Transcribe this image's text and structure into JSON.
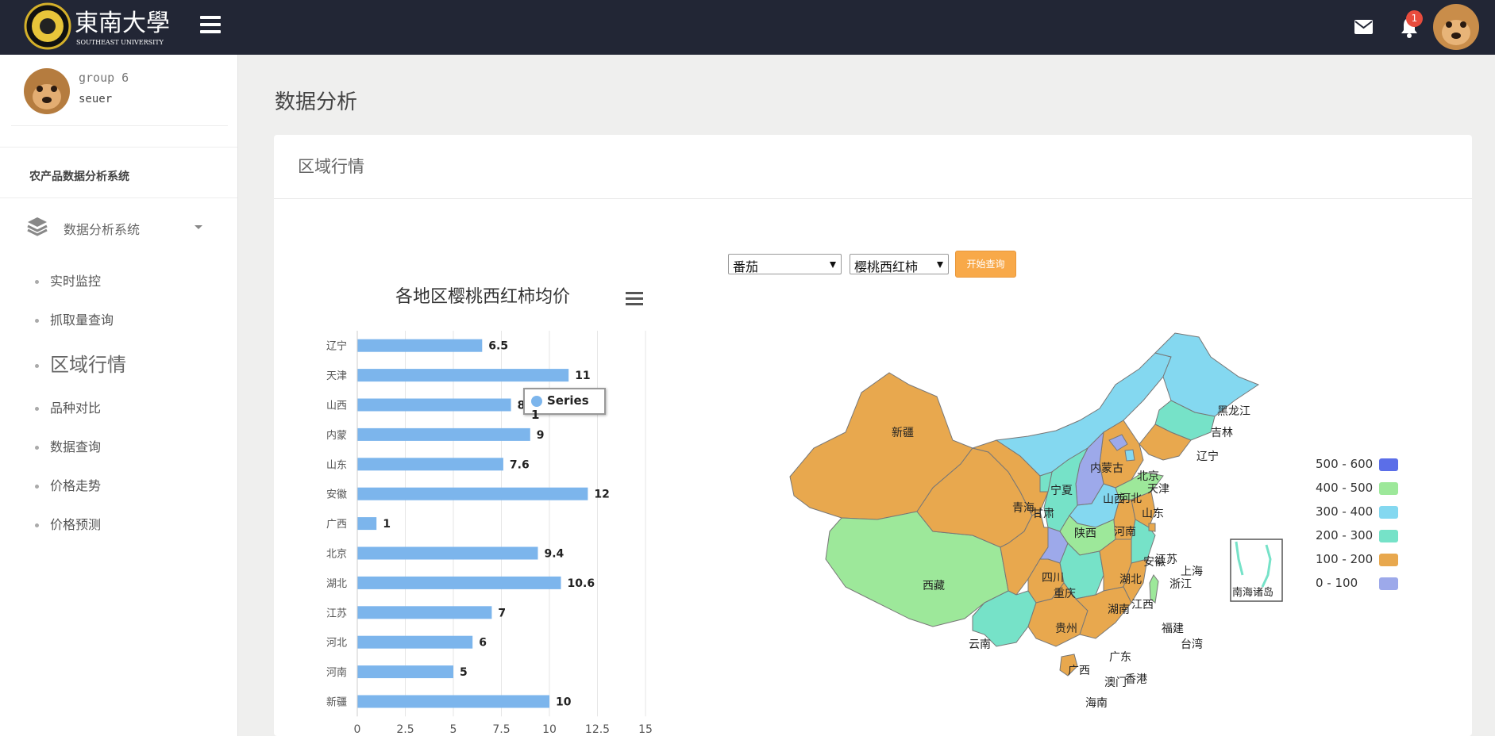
{
  "header": {
    "logo_text": "東南大學",
    "logo_subtext": "SOUTHEAST UNIVERSITY",
    "notification_count": "1"
  },
  "sidebar": {
    "user_group": "group 6",
    "user_name": "seuer",
    "system_title": "农产品数据分析系统",
    "section_label": "数据分析系统",
    "items": [
      {
        "label": "实时监控"
      },
      {
        "label": "抓取量查询"
      },
      {
        "label": "区域行情"
      },
      {
        "label": "品种对比"
      },
      {
        "label": "数据查询"
      },
      {
        "label": "价格走势"
      },
      {
        "label": "价格预测"
      }
    ]
  },
  "main": {
    "page_title": "数据分析",
    "panel_title": "区域行情",
    "filters": {
      "category": "番茄",
      "variety": "樱桃西红柿",
      "query_button": "开始查询"
    },
    "tooltip": {
      "series_name": "Series 1"
    }
  },
  "chart_data": {
    "type": "bar",
    "orientation": "horizontal",
    "title": "各地区樱桃西红柿均价",
    "categories": [
      "辽宁",
      "天津",
      "山西",
      "内蒙",
      "山东",
      "安徽",
      "广西",
      "北京",
      "湖北",
      "江苏",
      "河北",
      "河南",
      "新疆"
    ],
    "series": [
      {
        "name": "Series 1",
        "values": [
          6.5,
          11,
          8,
          9,
          7.6,
          12,
          1,
          9.4,
          10.6,
          7,
          6,
          5,
          10
        ]
      }
    ],
    "data_labels": [
      "6.5",
      "11",
      "8",
      "9",
      "7.6",
      "12",
      "1",
      "9.4",
      "10.6",
      "7",
      "6",
      "5",
      "10"
    ],
    "x_ticks": [
      "0",
      "2.5",
      "5",
      "7.5",
      "10",
      "12.5",
      "15"
    ],
    "xlim": [
      0,
      15
    ],
    "grid": true,
    "bar_color": "#7cb5ec"
  },
  "map": {
    "provinces": [
      "新疆",
      "西藏",
      "青海",
      "甘肃",
      "宁夏",
      "内蒙古",
      "黑龙江",
      "吉林",
      "辽宁",
      "北京",
      "天津",
      "河北",
      "山西",
      "山东",
      "河南",
      "陕西",
      "四川",
      "重庆",
      "湖北",
      "湖南",
      "江西",
      "安徽",
      "江苏",
      "上海",
      "浙江",
      "福建",
      "台湾",
      "广东",
      "广西",
      "贵州",
      "云南",
      "海南",
      "香港",
      "澳门",
      "南海诸岛"
    ],
    "legend": [
      {
        "label": "500 - 600",
        "color": "#5b6ee8"
      },
      {
        "label": "400 - 500",
        "color": "#9de89a"
      },
      {
        "label": "300 - 400",
        "color": "#84d8f0"
      },
      {
        "label": "200 - 300",
        "color": "#76e2c8"
      },
      {
        "label": "100 - 200",
        "color": "#e8a84e"
      },
      {
        "label": "0 - 100",
        "color": "#9da9ea"
      }
    ]
  }
}
